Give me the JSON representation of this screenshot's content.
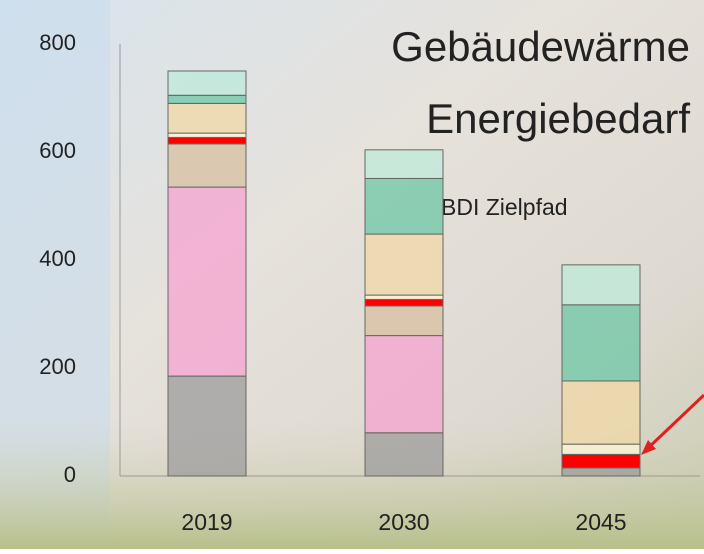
{
  "chart_data": {
    "type": "stacked_bar",
    "title": [
      "Gebäudewärme",
      "Energiebedarf"
    ],
    "annotation": "BDI Zielpfad",
    "categories": [
      "2019",
      "2030",
      "2045"
    ],
    "series": [
      {
        "color": "#9c9c9c",
        "values": [
          185,
          80,
          15
        ]
      },
      {
        "color": "#f5a3d0",
        "values": [
          350,
          180,
          0
        ]
      },
      {
        "color": "#d8bfa0",
        "values": [
          80,
          55,
          0
        ]
      },
      {
        "color": "#ff0000",
        "values": [
          12,
          12,
          25
        ]
      },
      {
        "color": "#fff6d6",
        "values": [
          8,
          8,
          19
        ]
      },
      {
        "color": "#f0d8a6",
        "values": [
          55,
          113,
          117
        ]
      },
      {
        "color": "#6cc7a5",
        "values": [
          15,
          103,
          141
        ]
      },
      {
        "color": "#bde9d9",
        "values": [
          45,
          53,
          74
        ]
      }
    ],
    "ylim": [
      0,
      800
    ],
    "yticks": [
      0,
      200,
      400,
      600,
      800
    ]
  }
}
